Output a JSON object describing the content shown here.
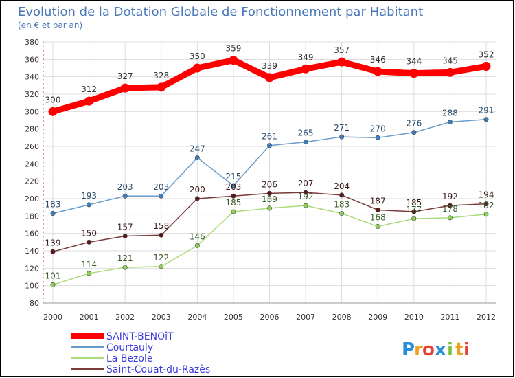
{
  "chart_data": {
    "type": "line",
    "title": "Evolution de la Dotation Globale de Fonctionnement par Habitant",
    "subtitle": "(en € et par an)",
    "xlabel": "",
    "ylabel": "",
    "ylim": [
      80,
      380
    ],
    "yticks": [
      80,
      100,
      120,
      140,
      160,
      180,
      200,
      220,
      240,
      260,
      280,
      300,
      320,
      340,
      360,
      380
    ],
    "categories": [
      "2000",
      "2001",
      "2002",
      "2003",
      "2004",
      "2005",
      "2006",
      "2007",
      "2008",
      "2009",
      "2010",
      "2011",
      "2012"
    ],
    "grid": true,
    "legend_position": "bottom-left",
    "series": [
      {
        "name": "SAINT-BENOîT",
        "color": "#ff0000",
        "marker": "#e00000",
        "label_color": "#333333",
        "values": [
          300,
          312,
          327,
          328,
          350,
          359,
          339,
          349,
          357,
          346,
          344,
          345,
          352
        ]
      },
      {
        "name": "Courtauly",
        "color": "#6a9cc8",
        "marker": "#3e7fbf",
        "label_color": "#2a4a6a",
        "values": [
          183,
          193,
          203,
          203,
          247,
          215,
          261,
          265,
          271,
          270,
          276,
          288,
          291
        ]
      },
      {
        "name": "La Bezole",
        "color": "#a8dc7a",
        "marker": "#8fd05a",
        "label_color": "#3a5a2a",
        "values": [
          101,
          114,
          121,
          122,
          146,
          185,
          189,
          192,
          183,
          168,
          177,
          178,
          182
        ]
      },
      {
        "name": "Saint-Couat-du-Razès",
        "color": "#7a3a3a",
        "marker": "#5a1a1a",
        "label_color": "#3a1a1a",
        "values": [
          139,
          150,
          157,
          158,
          200,
          203,
          206,
          207,
          204,
          187,
          185,
          192,
          194
        ]
      }
    ]
  },
  "logo": {
    "text": "Proxiti",
    "letters": [
      "P",
      "r",
      "o",
      "x",
      "i",
      "t",
      "i"
    ],
    "colors": [
      "#2b8fd8",
      "#f0a020",
      "#e84030",
      "#2b8fd8",
      "#7cc040",
      "#f0a020",
      "#e84030"
    ]
  }
}
